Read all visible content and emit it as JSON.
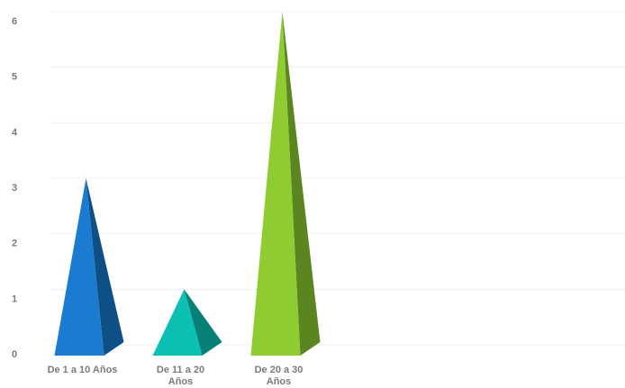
{
  "chart_data": {
    "type": "bar",
    "shape": "pyramid-3d",
    "categories": [
      "De 1 a 10 Años",
      "De 11 a 20 Años",
      "De 20 a 30 Años"
    ],
    "category_label_lines": [
      [
        "De 1 a 10 Años"
      ],
      [
        "De 11 a 20",
        "Años"
      ],
      [
        "De 20 a 30",
        "Años"
      ]
    ],
    "values": [
      3,
      1,
      6
    ],
    "ylim": [
      0,
      6
    ],
    "yticks": [
      0,
      1,
      2,
      3,
      4,
      5,
      6
    ],
    "grid": true,
    "legend": "none",
    "title": "",
    "xlabel": "",
    "ylabel": "",
    "colors": [
      {
        "front": "#1b7bd0",
        "side": "#0e4f86",
        "apex_light": "#2a8ae0"
      },
      {
        "front": "#0bbfb3",
        "side": "#078178",
        "apex_light": "#19cfc3"
      },
      {
        "front": "#8fcc32",
        "side": "#5b861f",
        "apex_light": "#9fd842"
      }
    ],
    "gridline_color": "#efefef",
    "tick_color": "#7b7b7b"
  }
}
